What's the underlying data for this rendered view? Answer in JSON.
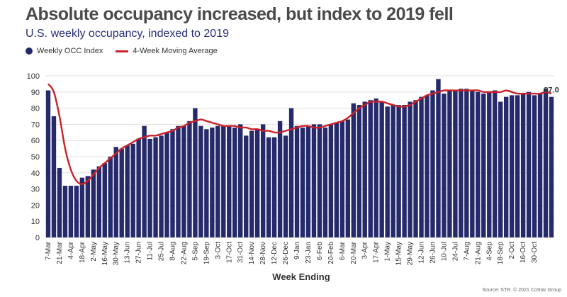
{
  "title": "Absolute occupancy increased, but index to 2019 fell",
  "subtitle": "U.S. weekly occupancy, indexed to 2019",
  "legend": {
    "bar_label": "Weekly OCC Index",
    "line_label": "4-Week Moving Average"
  },
  "source": "Source: STR. © 2021 CoStar Group",
  "colors": {
    "bar": "#262a6b",
    "line": "#cc2229",
    "grid": "#d9d9d9"
  },
  "chart_data": {
    "type": "bar",
    "title": "Absolute occupancy increased, but index to 2019 fell",
    "subtitle": "U.S. weekly occupancy, indexed to 2019",
    "xlabel": "Week Ending",
    "ylabel": "",
    "ylim": [
      0,
      100
    ],
    "yticks": [
      0,
      10,
      20,
      30,
      40,
      50,
      60,
      70,
      80,
      90,
      100
    ],
    "grid": true,
    "legend_position": "top-left",
    "last_label": "87.0",
    "tick_labels": [
      "7-Mar",
      "21-Mar",
      "4-Apr",
      "18-Apr",
      "2-May",
      "16-May",
      "30-May",
      "13-Jun",
      "27-Jun",
      "11-Jul",
      "25-Jul",
      "8-Aug",
      "22-Aug",
      "5-Sep",
      "19-Sep",
      "3-Oct",
      "17-Oct",
      "31-Oct",
      "14-Nov",
      "28-Nov",
      "12-Dec",
      "26-Dec",
      "9-Jan",
      "23-Jan",
      "6-Feb",
      "20-Feb",
      "6-Mar",
      "20-Mar",
      "3-Apr",
      "17-Apr",
      "1-May",
      "15-May",
      "29-May",
      "12-Jun",
      "26-Jun",
      "10-Jul",
      "24-Jul",
      "7-Aug",
      "21-Aug",
      "4-Sep",
      "18-Sep",
      "2-Oct",
      "16-Oct",
      "30-Oct"
    ],
    "series": [
      {
        "name": "Weekly OCC Index",
        "type": "bar",
        "values": [
          91,
          75,
          43,
          32,
          32,
          32,
          37,
          38,
          42,
          44,
          46,
          50,
          56,
          55,
          57,
          58,
          61,
          69,
          61,
          62,
          63,
          65,
          67,
          69,
          69,
          72,
          80,
          69,
          67,
          68,
          69,
          69,
          69,
          68,
          70,
          63,
          66,
          67,
          70,
          62,
          62,
          72,
          63,
          80,
          69,
          68,
          69,
          70,
          70,
          68,
          70,
          71,
          72,
          73,
          83,
          82,
          84,
          85,
          86,
          84,
          81,
          82,
          82,
          82,
          84,
          85,
          87,
          88,
          91,
          98,
          89,
          91,
          91,
          92,
          92,
          91,
          90,
          89,
          90,
          91,
          84,
          87,
          88,
          88,
          89,
          90,
          88,
          89,
          92,
          87
        ]
      },
      {
        "name": "4-Week Moving Average",
        "type": "line",
        "values": [
          95,
          90,
          75,
          55,
          42,
          35,
          33,
          35,
          39,
          43,
          46,
          49,
          52,
          55,
          57,
          59,
          61,
          62,
          63,
          63,
          64,
          65,
          66,
          68,
          69,
          71,
          72,
          73,
          72,
          71,
          70,
          69,
          69,
          69,
          68,
          68,
          67,
          67,
          66,
          66,
          65,
          65,
          66,
          67,
          68,
          69,
          69,
          68,
          68,
          69,
          70,
          71,
          72,
          74,
          77,
          80,
          82,
          84,
          84,
          84,
          83,
          82,
          81,
          81,
          82,
          84,
          86,
          88,
          89,
          90,
          91,
          91,
          91,
          91,
          91,
          91,
          91,
          90,
          90,
          90,
          90,
          91,
          90,
          89,
          89,
          89,
          89,
          89,
          90,
          89
        ]
      }
    ]
  }
}
